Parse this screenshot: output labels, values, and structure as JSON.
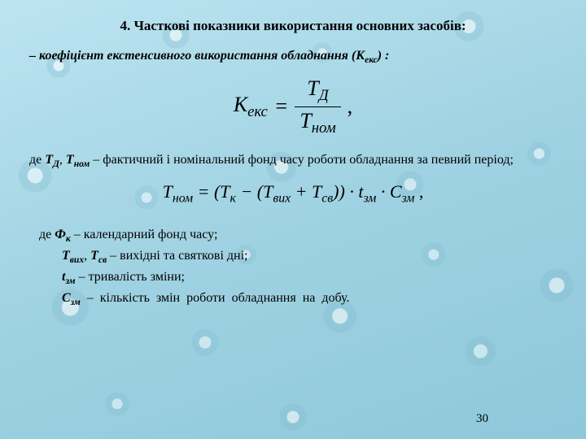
{
  "title": "4. Часткові показники використання основних засобів:",
  "line1_prefix": "– коефіцієнт екстенсивного використання обладнання (К",
  "line1_sub": "екс",
  "line1_suffix": ") :",
  "formula1": {
    "lhs": "К",
    "lhs_sub": "екс",
    "num": "Т",
    "num_sub": "Д",
    "den": "Т",
    "den_sub": "ном",
    "tail": ","
  },
  "para1_a": "де ",
  "para1_s1": "Т",
  "para1_s1sub": "Д",
  "para1_comma": ", ",
  "para1_s2": "Т",
  "para1_s2sub": "ном",
  "para1_b": " – фактичний і номінальний фонд часу роботи обладнання за певний період;",
  "formula2": {
    "lhs": "Т",
    "lhs_sub": "ном",
    "eq": " = (Т",
    "s1sub": "к",
    "m1": " − (Т",
    "s2sub": "вих",
    "m2": " + Т",
    "s3sub": "св",
    "m3": ")) · t",
    "s4sub": "зм",
    "m4": " · С",
    "s5sub": "зм",
    "tail": " ,"
  },
  "defs": {
    "d1a": "де ",
    "d1s": "Ф",
    "d1sub": "к",
    "d1b": " – календарний фонд часу;",
    "d2s1": "Т",
    "d2s1sub": "вих",
    "d2c": ", ",
    "d2s2": "Т",
    "d2s2sub": "св",
    "d2b": " – вихідні та святкові дні;",
    "d3s": "t",
    "d3sub": "зм",
    "d3b": " – тривалість зміни;",
    "d4s": "С",
    "d4sub": "зм",
    "d4b": " – кількість змін роботи обладнання на добу."
  },
  "pagenum": "30",
  "colors": {
    "text": "#000000",
    "bg_base": "#a8d8e8"
  },
  "typography": {
    "family": "Times New Roman",
    "title_size_pt": 13,
    "body_size_pt": 12,
    "formula_big_pt": 20,
    "formula2_pt": 17
  }
}
